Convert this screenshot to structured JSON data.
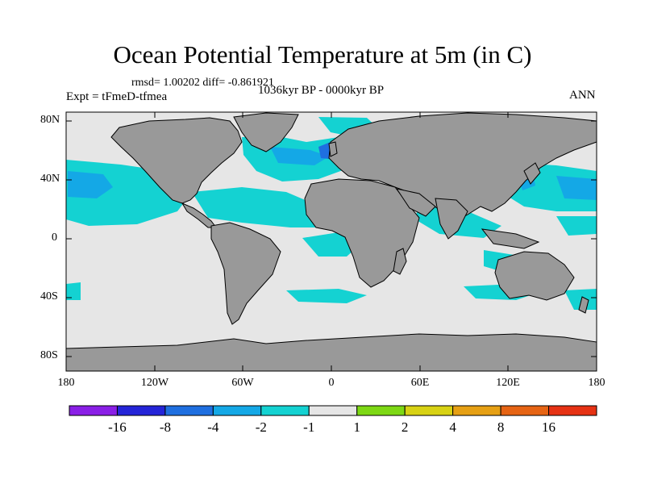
{
  "title": "Ocean Potential Temperature at 5m (in C)",
  "stats": "rmsd= 1.00202 diff= -0.861921",
  "experiment": "Expt = tFmeD-tfmea",
  "period": "1036kyr BP - 0000kyr BP",
  "season": "ANN",
  "y_ticks": [
    "80N",
    "40N",
    "0",
    "40S",
    "80S"
  ],
  "x_ticks": [
    "180",
    "120W",
    "60W",
    "0",
    "60E",
    "120E",
    "180"
  ],
  "colorbar": {
    "labels": [
      "-16",
      "-8",
      "-4",
      "-2",
      "-1",
      "1",
      "2",
      "4",
      "8",
      "16"
    ],
    "colors": [
      "#8a1fe6",
      "#2424d8",
      "#1f6fe0",
      "#14a8e6",
      "#14d2d2",
      "#e6e6e6",
      "#7dd814",
      "#d8d214",
      "#e6a014",
      "#e66414",
      "#e63214"
    ]
  },
  "colors": {
    "land": "#999999",
    "ocean_neutral": "#e6e6e6",
    "cool_1": "#14d2d2",
    "cool_2": "#14a8e6",
    "cool_3": "#1f6fe0"
  }
}
